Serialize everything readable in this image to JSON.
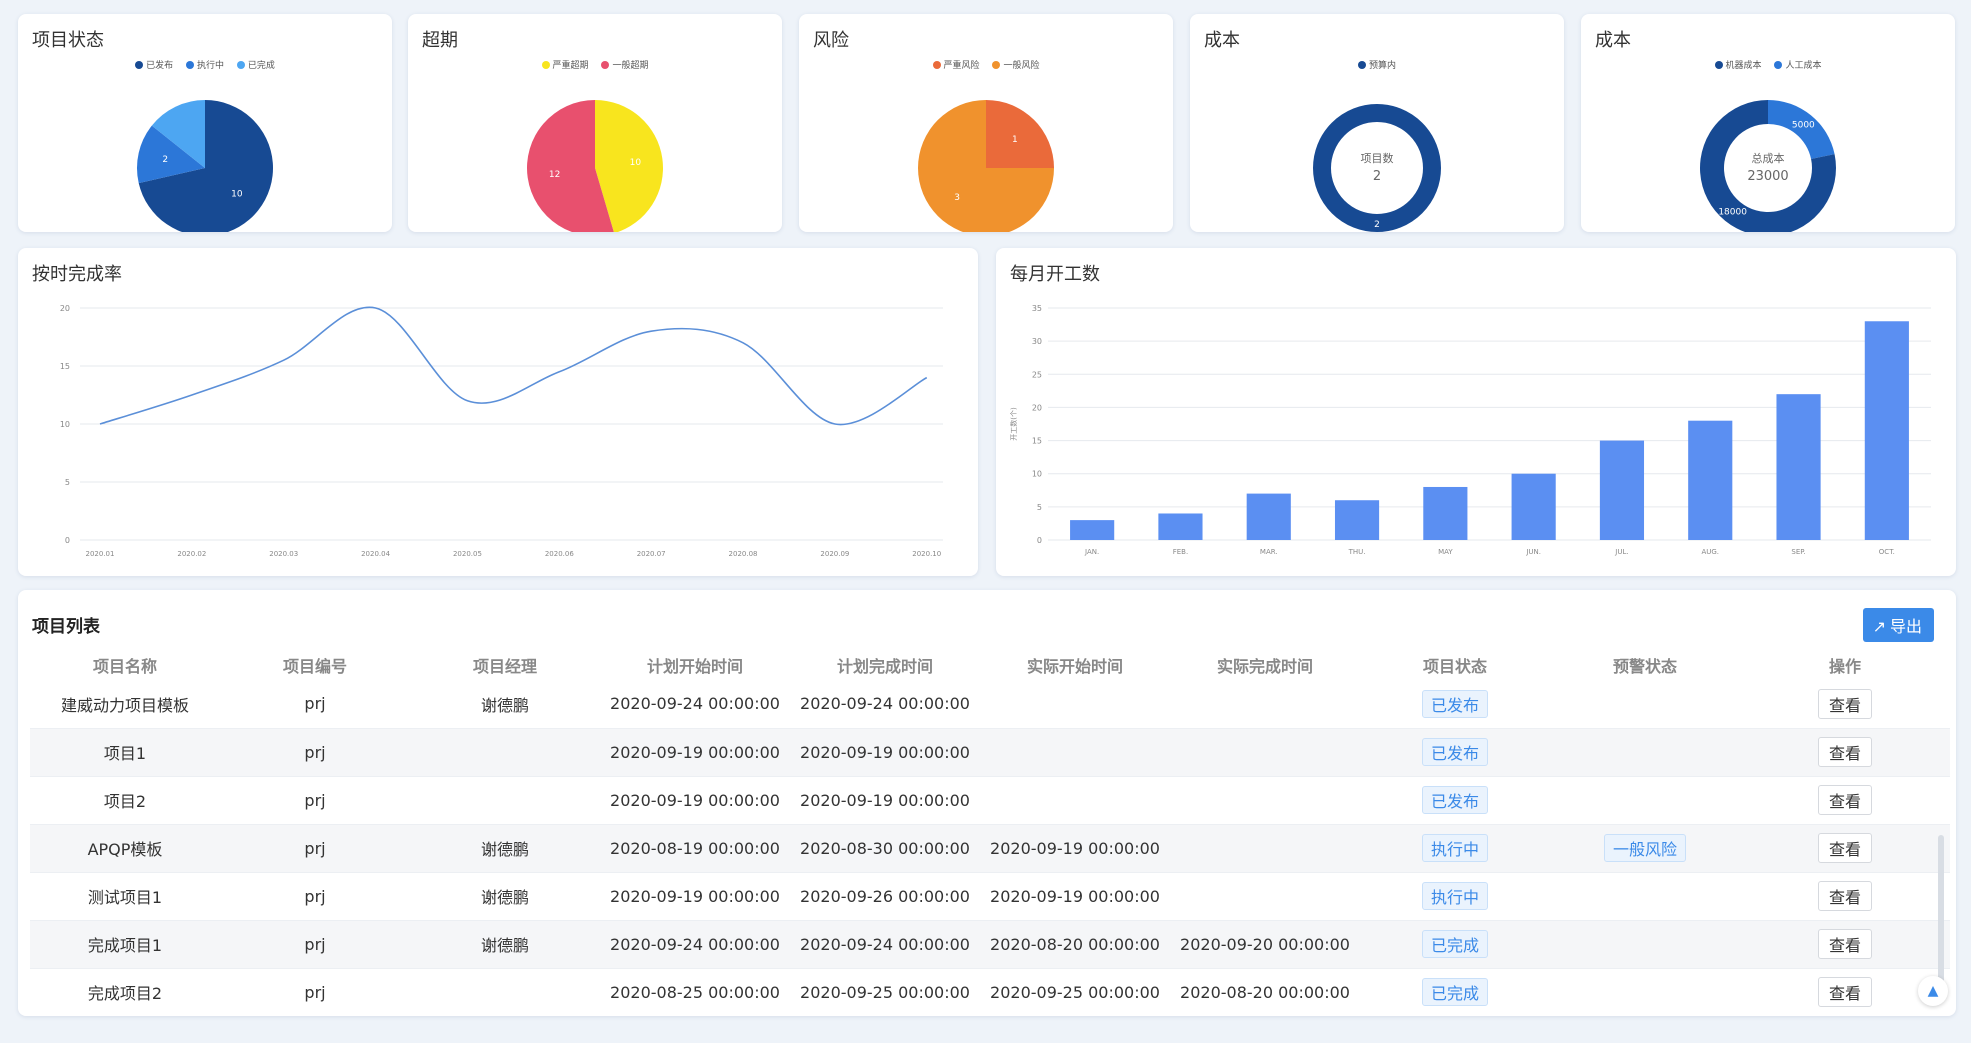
{
  "colors": {
    "deep_blue": "#174a93",
    "mid_blue": "#2c77d8",
    "light_blue": "#4da6f2",
    "red": "#e8506e",
    "yellow": "#f8e51e",
    "orange_dark": "#ea6a3a",
    "orange": "#f0922d",
    "bar": "#5b8ff2",
    "line": "#5b8fd8",
    "tag": "#3b8ae8"
  },
  "kpi": {
    "status": {
      "title": "项目状态",
      "legend": [
        "已发布",
        "执行中",
        "已完成"
      ],
      "values": [
        10,
        2,
        2
      ],
      "labels": [
        "10",
        "2",
        ""
      ]
    },
    "overdue": {
      "title": "超期",
      "legend": [
        "严重超期",
        "一般超期"
      ],
      "values": [
        10,
        12
      ],
      "labels": [
        "10",
        "12"
      ]
    },
    "risk": {
      "title": "风险",
      "legend": [
        "严重风险",
        "一般风险"
      ],
      "values": [
        1,
        3
      ],
      "labels": [
        "1",
        "3"
      ]
    },
    "cost1": {
      "title": "成本",
      "legend": [
        "预算内"
      ],
      "center_label": "项目数",
      "center_value": "2",
      "ring_label": "2"
    },
    "cost2": {
      "title": "成本",
      "legend": [
        "机器成本",
        "人工成本"
      ],
      "center_label": "总成本",
      "center_value": "23000",
      "values": [
        5000,
        18000
      ],
      "labels": [
        "5000",
        "18000"
      ]
    }
  },
  "line_panel": {
    "title": "按时完成率"
  },
  "bar_panel": {
    "title": "每月开工数"
  },
  "chart_data": [
    {
      "type": "line",
      "title": "按时完成率",
      "x": [
        "2020.01",
        "2020.02",
        "2020.03",
        "2020.04",
        "2020.05",
        "2020.06",
        "2020.07",
        "2020.08",
        "2020.09",
        "2020.10"
      ],
      "series": [
        {
          "values": [
            10,
            12.5,
            15.5,
            20,
            12,
            14.5,
            18,
            17,
            10,
            14
          ]
        }
      ],
      "ylim": [
        0,
        20
      ],
      "yticks": [
        "20",
        "15",
        "10",
        "5",
        "0"
      ],
      "grid": true
    },
    {
      "type": "bar",
      "title": "每月开工数",
      "ylabel": "开工数(个)",
      "categories": [
        "JAN.",
        "FEB.",
        "MAR.",
        "THU.",
        "MAY",
        "JUN.",
        "JUL.",
        "AUG.",
        "SEP.",
        "OCT."
      ],
      "values": [
        3,
        4,
        7,
        6,
        8,
        10,
        15,
        18,
        22,
        33
      ],
      "ylim": [
        0,
        35
      ],
      "yticks": [
        "35",
        "30",
        "25",
        "20",
        "15",
        "10",
        "5",
        "0"
      ],
      "grid": true
    }
  ],
  "table": {
    "title": "项目列表",
    "export_label": "导出",
    "columns": [
      "项目名称",
      "项目编号",
      "项目经理",
      "计划开始时间",
      "计划完成时间",
      "实际开始时间",
      "实际完成时间",
      "项目状态",
      "预警状态",
      "操作"
    ],
    "rows": [
      {
        "name": "建威动力项目模板",
        "code": "prj",
        "manager": "谢德鹏",
        "plan_start": "2020-09-24 00:00:00",
        "plan_end": "2020-09-24 00:00:00",
        "actual_start": "",
        "actual_end": "",
        "status": "已发布",
        "warning": "",
        "action": "查看"
      },
      {
        "name": "项目1",
        "code": "prj",
        "manager": "",
        "plan_start": "2020-09-19 00:00:00",
        "plan_end": "2020-09-19 00:00:00",
        "actual_start": "",
        "actual_end": "",
        "status": "已发布",
        "warning": "",
        "action": "查看"
      },
      {
        "name": "项目2",
        "code": "prj",
        "manager": "",
        "plan_start": "2020-09-19 00:00:00",
        "plan_end": "2020-09-19 00:00:00",
        "actual_start": "",
        "actual_end": "",
        "status": "已发布",
        "warning": "",
        "action": "查看"
      },
      {
        "name": "APQP模板",
        "code": "prj",
        "manager": "谢德鹏",
        "plan_start": "2020-08-19 00:00:00",
        "plan_end": "2020-08-30 00:00:00",
        "actual_start": "2020-09-19 00:00:00",
        "actual_end": "",
        "status": "执行中",
        "warning": "一般风险",
        "action": "查看"
      },
      {
        "name": "测试项目1",
        "code": "prj",
        "manager": "谢德鹏",
        "plan_start": "2020-09-19 00:00:00",
        "plan_end": "2020-09-26 00:00:00",
        "actual_start": "2020-09-19 00:00:00",
        "actual_end": "",
        "status": "执行中",
        "warning": "",
        "action": "查看"
      },
      {
        "name": "完成项目1",
        "code": "prj",
        "manager": "谢德鹏",
        "plan_start": "2020-09-24 00:00:00",
        "plan_end": "2020-09-24 00:00:00",
        "actual_start": "2020-08-20 00:00:00",
        "actual_end": "2020-09-20 00:00:00",
        "status": "已完成",
        "warning": "",
        "action": "查看"
      },
      {
        "name": "完成项目2",
        "code": "prj",
        "manager": "",
        "plan_start": "2020-08-25 00:00:00",
        "plan_end": "2020-09-25 00:00:00",
        "actual_start": "2020-09-25 00:00:00",
        "actual_end": "2020-08-20 00:00:00",
        "status": "已完成",
        "warning": "",
        "action": "查看"
      }
    ]
  }
}
